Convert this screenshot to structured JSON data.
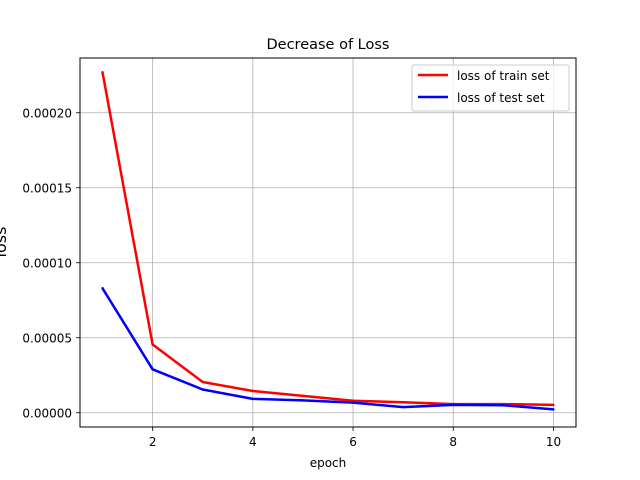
{
  "chart_data": {
    "type": "line",
    "title": "Decrease of Loss",
    "xlabel": "epoch",
    "ylabel": "loss",
    "x": [
      1,
      2,
      3,
      4,
      5,
      6,
      7,
      8,
      9,
      10
    ],
    "xlim": [
      0.55,
      10.45
    ],
    "ylim": [
      -9.5e-06,
      0.0002365
    ],
    "xticks": [
      2,
      4,
      6,
      8,
      10
    ],
    "xtick_labels": [
      "2",
      "4",
      "6",
      "8",
      "10"
    ],
    "yticks": [
      0,
      5e-05,
      0.0001,
      0.00015,
      0.0002
    ],
    "ytick_labels": [
      "0.00000",
      "0.00005",
      "0.00010",
      "0.00015",
      "0.00020"
    ],
    "grid": true,
    "legend_position": "top-right",
    "series": [
      {
        "name": "loss of train set",
        "color": "#ff0000",
        "values": [
          0.000227,
          4.55e-05,
          2.05e-05,
          1.45e-05,
          1.12e-05,
          8e-06,
          7e-06,
          5.8e-06,
          5.8e-06,
          5.2e-06
        ]
      },
      {
        "name": "loss of test set",
        "color": "#0000ff",
        "values": [
          8.3e-05,
          2.9e-05,
          1.55e-05,
          9.2e-06,
          8.2e-06,
          6.8e-06,
          3.8e-06,
          5.2e-06,
          5e-06,
          2.2e-06
        ]
      }
    ]
  }
}
